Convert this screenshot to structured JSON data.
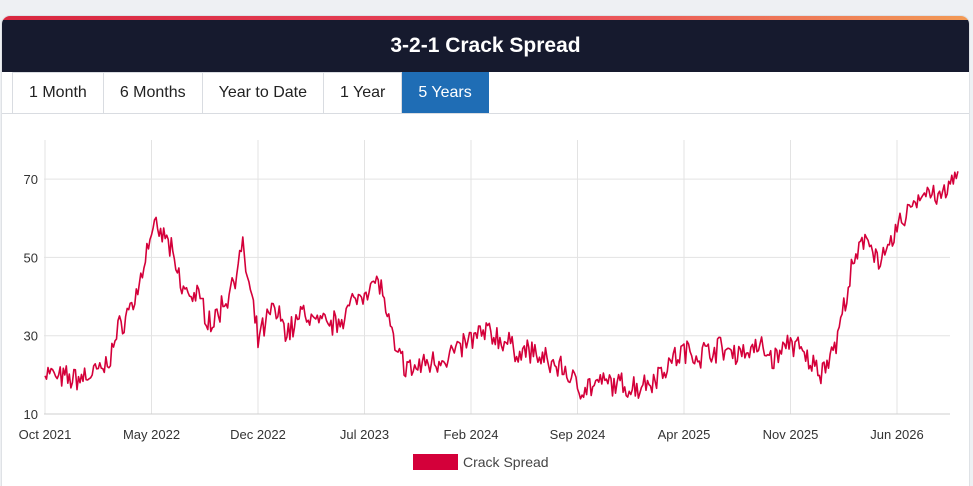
{
  "header": {
    "title": "3-2-1 Crack Spread"
  },
  "tabs": [
    {
      "label": "1 Month",
      "active": false
    },
    {
      "label": "6 Months",
      "active": false
    },
    {
      "label": "Year to Date",
      "active": false
    },
    {
      "label": "1 Year",
      "active": false
    },
    {
      "label": "5 Years",
      "active": true
    }
  ],
  "colors": {
    "series": "#d4003a",
    "active_tab": "#1f6db5",
    "title_bar": "#161a2e"
  },
  "chart_data": {
    "type": "line",
    "title": "",
    "xlabel": "",
    "ylabel": "",
    "ylim": [
      10,
      80
    ],
    "yticks": [
      10,
      30,
      50,
      70
    ],
    "xticks": [
      "Oct 2021",
      "May 2022",
      "Dec 2022",
      "Jul 2023",
      "Feb 2024",
      "Sep 2024",
      "Apr 2025",
      "Nov 2025",
      "Jun 2026"
    ],
    "grid": true,
    "legend": "bottom-center",
    "series": [
      {
        "name": "Crack Spread",
        "x": [
          "2021-10",
          "2021-11",
          "2021-12",
          "2022-01",
          "2022-02",
          "2022-03",
          "2022-04",
          "2022-05",
          "2022-06",
          "2022-07",
          "2022-08",
          "2022-09",
          "2022-10",
          "2022-11",
          "2022-12",
          "2023-01",
          "2023-02",
          "2023-03",
          "2023-04",
          "2023-05",
          "2023-06",
          "2023-07",
          "2023-08",
          "2023-09",
          "2023-10",
          "2023-11",
          "2023-12",
          "2024-01",
          "2024-02",
          "2024-03",
          "2024-04",
          "2024-05",
          "2024-06",
          "2024-07",
          "2024-08",
          "2024-09",
          "2024-10",
          "2024-11",
          "2024-12",
          "2025-01",
          "2025-02",
          "2025-03",
          "2025-04",
          "2025-05",
          "2025-06",
          "2025-07",
          "2025-08",
          "2025-09",
          "2025-10",
          "2025-11",
          "2025-12",
          "2026-01",
          "2026-02",
          "2026-03",
          "2026-04",
          "2026-05",
          "2026-06",
          "2026-07",
          "2026-08",
          "2026-09",
          "2026-10"
        ],
        "values": [
          21,
          19,
          19,
          20,
          22,
          33,
          40,
          57,
          55,
          42,
          40,
          33,
          40,
          52,
          29,
          37,
          31,
          36,
          33,
          33,
          37,
          42,
          44,
          26,
          21,
          23,
          24,
          26,
          29,
          31,
          29,
          26,
          26,
          23,
          22,
          17,
          17,
          18,
          17,
          17,
          19,
          23,
          26,
          25,
          27,
          26,
          26,
          27,
          24,
          29,
          24,
          21,
          28,
          46,
          56,
          48,
          57,
          64,
          67,
          65,
          72
        ]
      }
    ]
  },
  "legend_label": "Crack Spread"
}
